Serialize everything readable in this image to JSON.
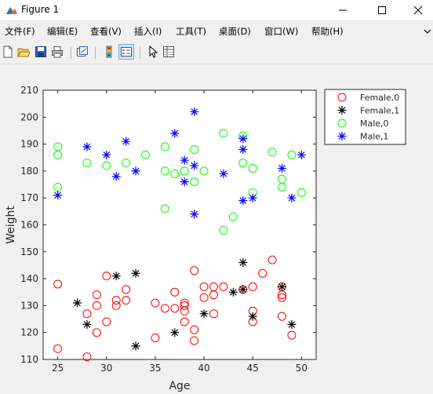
{
  "window": {
    "title": "Figure 1",
    "icon": "matlab-figure-icon"
  },
  "menu": {
    "items": [
      "文件(F)",
      "编辑(E)",
      "查看(V)",
      "插入(I)",
      "工具(T)",
      "桌面(D)",
      "窗口(W)",
      "帮助(H)"
    ]
  },
  "toolbar": {
    "icons": [
      "new-figure-icon",
      "open-icon",
      "save-icon",
      "print-icon",
      "link-plot-icon",
      "insert-colorbar-icon",
      "insert-legend-icon",
      "edit-plot-icon",
      "property-inspector-icon"
    ]
  },
  "colors": {
    "female0": "#ff0000",
    "female1": "#000000",
    "male0": "#00ff00",
    "male1": "#0000ff"
  },
  "chart_data": {
    "type": "scatter",
    "xlabel": "Age",
    "ylabel": "Weight",
    "xlim": [
      23.5,
      51.5
    ],
    "ylim": [
      110,
      210
    ],
    "xticks": [
      25,
      30,
      35,
      40,
      45,
      50
    ],
    "yticks": [
      110,
      120,
      130,
      140,
      150,
      160,
      170,
      180,
      190,
      200,
      210
    ],
    "grid": false,
    "legend_position": "outside-top-right",
    "series": [
      {
        "name": "Female,0",
        "marker": "circle",
        "color": "#ff0000",
        "points": [
          [
            25,
            138
          ],
          [
            25,
            114
          ],
          [
            28,
            127
          ],
          [
            28,
            111
          ],
          [
            29,
            134
          ],
          [
            29,
            130
          ],
          [
            29,
            120
          ],
          [
            30,
            141
          ],
          [
            30,
            124
          ],
          [
            31,
            132
          ],
          [
            31,
            130
          ],
          [
            32,
            136
          ],
          [
            32,
            132
          ],
          [
            35,
            131
          ],
          [
            35,
            118
          ],
          [
            36,
            129
          ],
          [
            37,
            135
          ],
          [
            37,
            129
          ],
          [
            38,
            131
          ],
          [
            38,
            130
          ],
          [
            38,
            128
          ],
          [
            38,
            124
          ],
          [
            39,
            143
          ],
          [
            39,
            121
          ],
          [
            39,
            117
          ],
          [
            40,
            137
          ],
          [
            40,
            133
          ],
          [
            41,
            137
          ],
          [
            41,
            134
          ],
          [
            41,
            127
          ],
          [
            42,
            137
          ],
          [
            44,
            136
          ],
          [
            45,
            137
          ],
          [
            45,
            128
          ],
          [
            45,
            124
          ],
          [
            46,
            142
          ],
          [
            47,
            147
          ],
          [
            48,
            137
          ],
          [
            48,
            134
          ],
          [
            48,
            133
          ],
          [
            48,
            126
          ],
          [
            49,
            119
          ]
        ]
      },
      {
        "name": "Female,1",
        "marker": "asterisk",
        "color": "#000000",
        "points": [
          [
            27,
            131
          ],
          [
            28,
            123
          ],
          [
            31,
            141
          ],
          [
            33,
            142
          ],
          [
            33,
            115
          ],
          [
            37,
            120
          ],
          [
            40,
            127
          ],
          [
            43,
            135
          ],
          [
            44,
            146
          ],
          [
            44,
            136
          ],
          [
            45,
            126
          ],
          [
            48,
            137
          ],
          [
            49,
            123
          ]
        ]
      },
      {
        "name": "Male,0",
        "marker": "circle",
        "color": "#00ff00",
        "points": [
          [
            25,
            189
          ],
          [
            25,
            186
          ],
          [
            25,
            174
          ],
          [
            28,
            183
          ],
          [
            30,
            182
          ],
          [
            32,
            183
          ],
          [
            34,
            186
          ],
          [
            36,
            189
          ],
          [
            36,
            180
          ],
          [
            36,
            166
          ],
          [
            37,
            179
          ],
          [
            38,
            180
          ],
          [
            39,
            188
          ],
          [
            39,
            176
          ],
          [
            40,
            180
          ],
          [
            42,
            194
          ],
          [
            42,
            158
          ],
          [
            43,
            163
          ],
          [
            44,
            193
          ],
          [
            44,
            183
          ],
          [
            45,
            181
          ],
          [
            45,
            172
          ],
          [
            47,
            187
          ],
          [
            48,
            177
          ],
          [
            48,
            174
          ],
          [
            49,
            186
          ],
          [
            50,
            172
          ]
        ]
      },
      {
        "name": "Male,1",
        "marker": "asterisk",
        "color": "#0000ff",
        "points": [
          [
            25,
            171
          ],
          [
            28,
            189
          ],
          [
            30,
            186
          ],
          [
            31,
            178
          ],
          [
            32,
            191
          ],
          [
            33,
            180
          ],
          [
            37,
            194
          ],
          [
            38,
            184
          ],
          [
            38,
            176
          ],
          [
            39,
            202
          ],
          [
            39,
            182
          ],
          [
            39,
            164
          ],
          [
            42,
            179
          ],
          [
            44,
            192
          ],
          [
            44,
            188
          ],
          [
            44,
            169
          ],
          [
            45,
            170
          ],
          [
            48,
            181
          ],
          [
            49,
            170
          ],
          [
            50,
            186
          ]
        ]
      }
    ]
  }
}
